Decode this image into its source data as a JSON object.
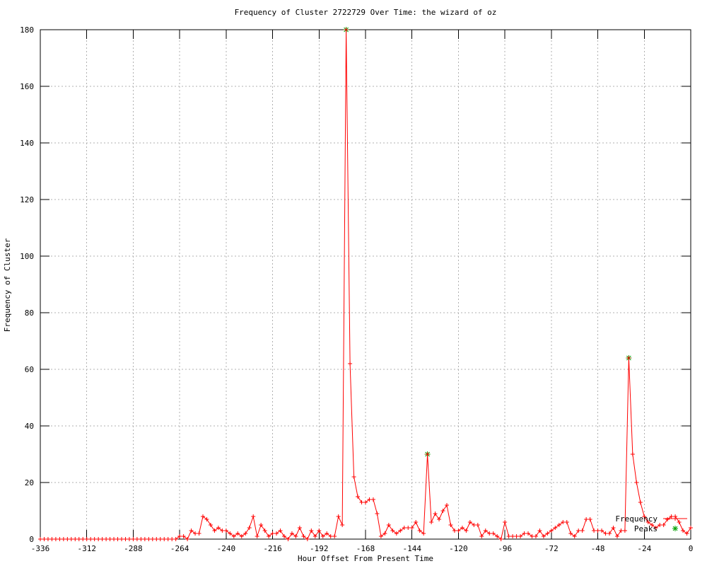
{
  "chart_data": {
    "type": "line",
    "title": "Frequency of Cluster 2722729 Over Time: the wizard of oz",
    "xlabel": "Hour Offset From Present Time",
    "ylabel": "Frequency of Cluster",
    "xlim": [
      -336,
      0
    ],
    "ylim": [
      0,
      180
    ],
    "x_ticks": [
      -336,
      -312,
      -288,
      -264,
      -240,
      -216,
      -192,
      -168,
      -144,
      -120,
      -96,
      -72,
      -48,
      -24,
      0
    ],
    "y_ticks": [
      0,
      20,
      40,
      60,
      80,
      100,
      120,
      140,
      160,
      180
    ],
    "grid": true,
    "grid_color": "#b0b0b0",
    "legend_position": "bottom-right",
    "legend": [
      "Frequency",
      "Peaks"
    ],
    "series": [
      {
        "name": "Frequency",
        "color": "#ff0000",
        "marker": "plus",
        "style": "line",
        "points": [
          [
            -336,
            0
          ],
          [
            -334,
            0
          ],
          [
            -332,
            0
          ],
          [
            -330,
            0
          ],
          [
            -328,
            0
          ],
          [
            -326,
            0
          ],
          [
            -324,
            0
          ],
          [
            -322,
            0
          ],
          [
            -320,
            0
          ],
          [
            -318,
            0
          ],
          [
            -316,
            0
          ],
          [
            -314,
            0
          ],
          [
            -312,
            0
          ],
          [
            -310,
            0
          ],
          [
            -308,
            0
          ],
          [
            -306,
            0
          ],
          [
            -304,
            0
          ],
          [
            -302,
            0
          ],
          [
            -300,
            0
          ],
          [
            -298,
            0
          ],
          [
            -296,
            0
          ],
          [
            -294,
            0
          ],
          [
            -292,
            0
          ],
          [
            -290,
            0
          ],
          [
            -288,
            0
          ],
          [
            -286,
            0
          ],
          [
            -284,
            0
          ],
          [
            -282,
            0
          ],
          [
            -280,
            0
          ],
          [
            -278,
            0
          ],
          [
            -276,
            0
          ],
          [
            -274,
            0
          ],
          [
            -272,
            0
          ],
          [
            -270,
            0
          ],
          [
            -268,
            0
          ],
          [
            -266,
            0
          ],
          [
            -264,
            1
          ],
          [
            -262,
            1
          ],
          [
            -260,
            0
          ],
          [
            -258,
            3
          ],
          [
            -256,
            2
          ],
          [
            -254,
            2
          ],
          [
            -252,
            8
          ],
          [
            -250,
            7
          ],
          [
            -248,
            5
          ],
          [
            -246,
            3
          ],
          [
            -244,
            4
          ],
          [
            -242,
            3
          ],
          [
            -240,
            3
          ],
          [
            -238,
            2
          ],
          [
            -236,
            1
          ],
          [
            -234,
            2
          ],
          [
            -232,
            1
          ],
          [
            -230,
            2
          ],
          [
            -228,
            4
          ],
          [
            -226,
            8
          ],
          [
            -224,
            1
          ],
          [
            -222,
            5
          ],
          [
            -220,
            3
          ],
          [
            -218,
            1
          ],
          [
            -216,
            2
          ],
          [
            -214,
            2
          ],
          [
            -212,
            3
          ],
          [
            -210,
            1
          ],
          [
            -208,
            0
          ],
          [
            -206,
            2
          ],
          [
            -204,
            1
          ],
          [
            -202,
            4
          ],
          [
            -200,
            1
          ],
          [
            -198,
            0
          ],
          [
            -196,
            3
          ],
          [
            -194,
            1
          ],
          [
            -192,
            3
          ],
          [
            -190,
            1
          ],
          [
            -188,
            2
          ],
          [
            -186,
            1
          ],
          [
            -184,
            1
          ],
          [
            -182,
            8
          ],
          [
            -180,
            5
          ],
          [
            -178,
            180
          ],
          [
            -176,
            62
          ],
          [
            -174,
            22
          ],
          [
            -172,
            15
          ],
          [
            -170,
            13
          ],
          [
            -168,
            13
          ],
          [
            -166,
            14
          ],
          [
            -164,
            14
          ],
          [
            -162,
            9
          ],
          [
            -160,
            1
          ],
          [
            -158,
            2
          ],
          [
            -156,
            5
          ],
          [
            -154,
            3
          ],
          [
            -152,
            2
          ],
          [
            -150,
            3
          ],
          [
            -148,
            4
          ],
          [
            -146,
            4
          ],
          [
            -144,
            4
          ],
          [
            -142,
            6
          ],
          [
            -140,
            3
          ],
          [
            -138,
            2
          ],
          [
            -136,
            30
          ],
          [
            -134,
            6
          ],
          [
            -132,
            9
          ],
          [
            -130,
            7
          ],
          [
            -128,
            10
          ],
          [
            -126,
            12
          ],
          [
            -124,
            5
          ],
          [
            -122,
            3
          ],
          [
            -120,
            3
          ],
          [
            -118,
            4
          ],
          [
            -116,
            3
          ],
          [
            -114,
            6
          ],
          [
            -112,
            5
          ],
          [
            -110,
            5
          ],
          [
            -108,
            1
          ],
          [
            -106,
            3
          ],
          [
            -104,
            2
          ],
          [
            -102,
            2
          ],
          [
            -100,
            1
          ],
          [
            -98,
            0
          ],
          [
            -96,
            6
          ],
          [
            -94,
            1
          ],
          [
            -92,
            1
          ],
          [
            -90,
            1
          ],
          [
            -88,
            1
          ],
          [
            -86,
            2
          ],
          [
            -84,
            2
          ],
          [
            -82,
            1
          ],
          [
            -80,
            1
          ],
          [
            -78,
            3
          ],
          [
            -76,
            1
          ],
          [
            -74,
            2
          ],
          [
            -72,
            3
          ],
          [
            -70,
            4
          ],
          [
            -68,
            5
          ],
          [
            -66,
            6
          ],
          [
            -64,
            6
          ],
          [
            -62,
            2
          ],
          [
            -60,
            1
          ],
          [
            -58,
            3
          ],
          [
            -56,
            3
          ],
          [
            -54,
            7
          ],
          [
            -52,
            7
          ],
          [
            -50,
            3
          ],
          [
            -48,
            3
          ],
          [
            -46,
            3
          ],
          [
            -44,
            2
          ],
          [
            -42,
            2
          ],
          [
            -40,
            4
          ],
          [
            -38,
            1
          ],
          [
            -36,
            3
          ],
          [
            -34,
            3
          ],
          [
            -32,
            64
          ],
          [
            -30,
            30
          ],
          [
            -28,
            20
          ],
          [
            -26,
            13
          ],
          [
            -24,
            8
          ],
          [
            -22,
            6
          ],
          [
            -20,
            5
          ],
          [
            -18,
            4
          ],
          [
            -16,
            5
          ],
          [
            -14,
            5
          ],
          [
            -12,
            7
          ],
          [
            -10,
            8
          ],
          [
            -8,
            8
          ],
          [
            -6,
            6
          ],
          [
            -4,
            3
          ],
          [
            -2,
            2
          ],
          [
            0,
            4
          ]
        ]
      },
      {
        "name": "Peaks",
        "color": "#00a000",
        "marker": "star",
        "style": "points",
        "points": [
          [
            -178,
            180
          ],
          [
            -136,
            30
          ],
          [
            -32,
            64
          ]
        ]
      }
    ]
  }
}
